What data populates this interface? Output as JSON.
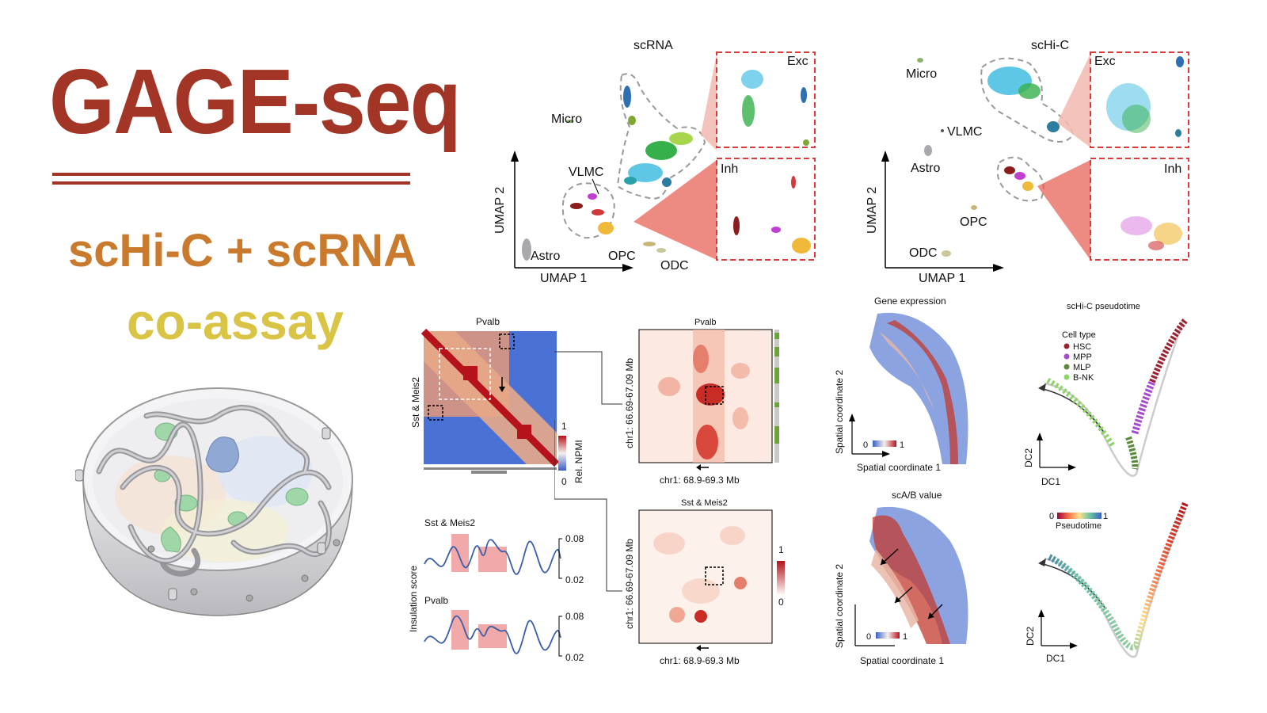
{
  "title": "GAGE-seq",
  "subtitle_line1": "scHi-C + scRNA",
  "subtitle_line2": "co-assay",
  "colors": {
    "title": "#a23526",
    "subtitle1": "#c97a2c",
    "subtitle2": "#d9c446",
    "inset_border": "#d93a3a"
  },
  "umap_rna": {
    "title": "scRNA",
    "xlabel": "UMAP 1",
    "ylabel": "UMAP 2",
    "labels": [
      "Micro",
      "VLMC",
      "Astro",
      "OPC",
      "ODC"
    ],
    "insets": [
      "Exc",
      "Inh"
    ]
  },
  "umap_hic": {
    "title": "scHi-C",
    "xlabel": "UMAP 1",
    "ylabel": "UMAP 2",
    "labels": [
      "Micro",
      "VLMC",
      "Astro",
      "OPC",
      "ODC"
    ],
    "insets": [
      "Exc",
      "Inh"
    ]
  },
  "contact_map": {
    "title": "Pvalb",
    "ylabel": "Sst & Meis2",
    "colorbar_label": "Rel. NPMI",
    "colorbar_max": "1",
    "colorbar_min": "0"
  },
  "zoom_pvalb": {
    "title": "Pvalb",
    "ylabel": "chr1: 66.69-67.09 Mb",
    "xlabel": "chr1: 68.9-69.3 Mb"
  },
  "zoom_sst": {
    "title": "Sst & Meis2",
    "ylabel": "chr1: 66.69-67.09 Mb",
    "xlabel": "chr1: 68.9-69.3 Mb",
    "colorbar_max": "1",
    "colorbar_min": "0"
  },
  "insulation": {
    "ylabel": "Insulation score",
    "track1": {
      "name": "Sst & Meis2",
      "top": "0.08",
      "bottom": "0.02"
    },
    "track2": {
      "name": "Pvalb",
      "top": "0.08",
      "bottom": "0.02"
    }
  },
  "spatial_gene": {
    "title": "Gene expression",
    "xlabel": "Spatial coordinate 1",
    "ylabel": "Spatial coordinate 2",
    "cb_min": "0",
    "cb_max": "1"
  },
  "spatial_ab": {
    "title": "scA/B value",
    "xlabel": "Spatial coordinate 1",
    "ylabel": "Spatial coordinate 2",
    "cb_min": "0",
    "cb_max": "1"
  },
  "pseudotime_celltype": {
    "title": "scHi-C pseudotime",
    "legend_title": "Cell type",
    "legend": [
      {
        "name": "HSC",
        "color": "#9b2230"
      },
      {
        "name": "MPP",
        "color": "#a64ad0"
      },
      {
        "name": "MLP",
        "color": "#5a8a3a"
      },
      {
        "name": "B-NK",
        "color": "#8fd46a"
      }
    ],
    "xlabel": "DC1",
    "ylabel": "DC2"
  },
  "pseudotime_colored": {
    "cb_min": "0",
    "cb_max": "1",
    "cb_label": "Pseudotime",
    "xlabel": "DC1",
    "ylabel": "DC2"
  }
}
